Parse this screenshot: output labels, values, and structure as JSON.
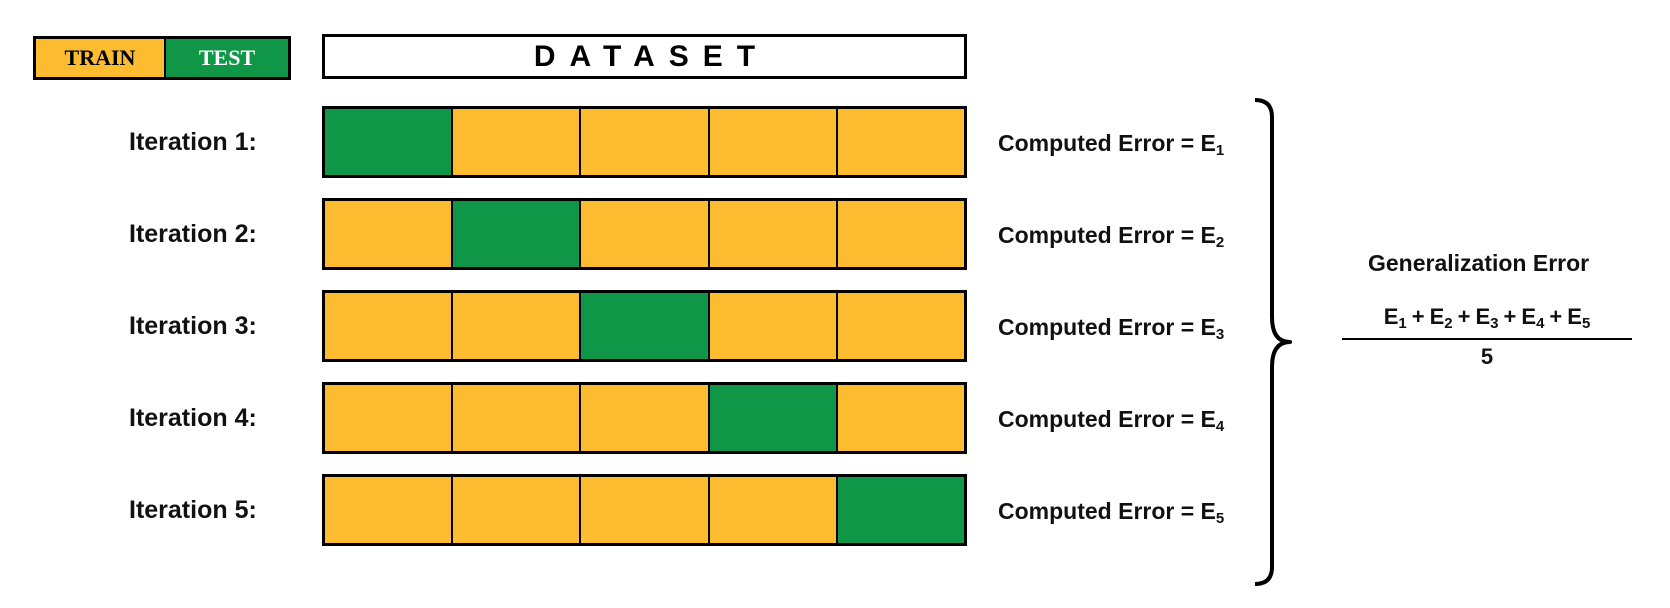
{
  "colors": {
    "train": "#FDBB2F",
    "test": "#109647",
    "border": "#000000"
  },
  "legend": {
    "train_label": "TRAIN",
    "test_label": "TEST"
  },
  "dataset": {
    "label": "DATASET"
  },
  "rows": [
    {
      "label": "Iteration 1:",
      "test_fold": 0,
      "error_text": "Computed Error = E",
      "error_sub": "1"
    },
    {
      "label": "Iteration 2:",
      "test_fold": 1,
      "error_text": "Computed Error = E",
      "error_sub": "2"
    },
    {
      "label": "Iteration 3:",
      "test_fold": 2,
      "error_text": "Computed Error = E",
      "error_sub": "3"
    },
    {
      "label": "Iteration 4:",
      "test_fold": 3,
      "error_text": "Computed Error = E",
      "error_sub": "4"
    },
    {
      "label": "Iteration 5:",
      "test_fold": 4,
      "error_text": "Computed Error = E",
      "error_sub": "5"
    }
  ],
  "generalization": {
    "title": "Generalization Error",
    "terms": [
      "1",
      "2",
      "3",
      "4",
      "5"
    ],
    "term_letter": "E",
    "operator": "+",
    "denominator": "5"
  }
}
